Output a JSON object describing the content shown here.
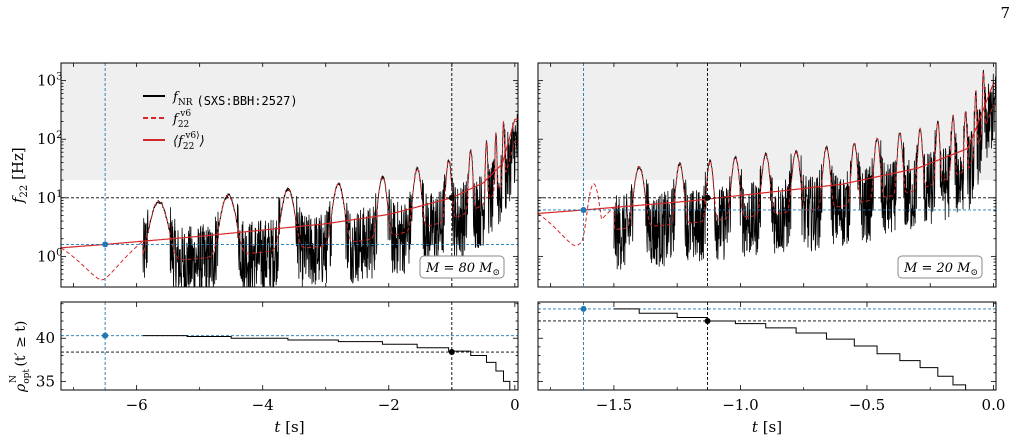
{
  "page_number": "7",
  "chart_data": [
    {
      "type": "line",
      "panel": "top-left",
      "ylabel": "f_22 [Hz]",
      "yscale": "log",
      "ylim": [
        0.3,
        2000
      ],
      "xlim": [
        -7.2,
        0.05
      ],
      "shaded_region_y": [
        20,
        2000
      ],
      "xticks": [
        -6,
        -4,
        -2,
        0
      ],
      "yticks": [
        1,
        10,
        100,
        1000
      ],
      "ytick_labels": [
        "10^0",
        "10^1",
        "10^2",
        "10^3"
      ],
      "legend": {
        "placement": "upper-left",
        "entries": [
          {
            "label": "f_NR",
            "code": "(SXS:BBH:2527)",
            "color": "#000000",
            "style": "solid"
          },
          {
            "label": "f_22^v6",
            "color": "#d62728",
            "style": "dashed"
          },
          {
            "label": "⟨f_22^v6⟩",
            "color": "#d62728",
            "style": "solid"
          }
        ]
      },
      "annotation": "M = 80 M_⊙",
      "ref_lines": {
        "h_black": 10,
        "v_black": -1.0,
        "h_blue": 1.6,
        "v_blue": -6.5
      },
      "marker_points": [
        {
          "x": -6.5,
          "y": 1.6,
          "color": "#1f77b4"
        },
        {
          "x": -1.0,
          "y": 10,
          "color": "#000000"
        }
      ],
      "nr_start": -5.9,
      "mean_curve": [
        [
          -7.2,
          1.4
        ],
        [
          -6.5,
          1.6
        ],
        [
          -5,
          2.2
        ],
        [
          -3,
          3.6
        ],
        [
          -2,
          5.2
        ],
        [
          -1,
          10
        ],
        [
          -0.5,
          18
        ],
        [
          -0.2,
          38
        ],
        [
          0,
          220
        ]
      ],
      "peaks": [
        -5.65,
        -4.55,
        -3.6,
        -2.8,
        -2.1,
        -1.55,
        -1.05,
        -0.7,
        -0.45,
        -0.3,
        -0.18
      ]
    },
    {
      "type": "line",
      "panel": "top-right",
      "yscale": "log",
      "ylim": [
        0.3,
        2000
      ],
      "xlim": [
        -1.8,
        0.01
      ],
      "shaded_region_y": [
        20,
        2000
      ],
      "annotation": "M = 20 M_⊙",
      "ref_lines": {
        "h_black": 10,
        "v_black": -1.13,
        "h_blue": 6.2,
        "v_blue": -1.62
      },
      "marker_points": [
        {
          "x": -1.62,
          "y": 6.2,
          "color": "#1f77b4"
        },
        {
          "x": -1.13,
          "y": 10,
          "color": "#000000"
        }
      ],
      "nr_start": -1.5,
      "mean_curve": [
        [
          -1.8,
          5.4
        ],
        [
          -1.62,
          6.2
        ],
        [
          -1.2,
          8.8
        ],
        [
          -1.0,
          11
        ],
        [
          -0.6,
          17
        ],
        [
          -0.3,
          32
        ],
        [
          -0.1,
          70
        ],
        [
          0,
          900
        ]
      ],
      "peaks": [
        -1.58,
        -1.4,
        -1.24,
        -1.12,
        -1.02,
        -0.9,
        -0.78,
        -0.66,
        -0.55,
        -0.46,
        -0.37,
        -0.29,
        -0.22,
        -0.16,
        -0.11,
        -0.07,
        -0.04
      ]
    },
    {
      "type": "line",
      "panel": "bottom-left",
      "xlabel": "t [s]",
      "ylabel": "ρ_opt^N (t′ ≥ t)",
      "ylim": [
        34,
        44.2
      ],
      "xlim": [
        -7.2,
        0.05
      ],
      "xticks": [
        -6,
        -4,
        -2,
        0
      ],
      "xtick_labels": [
        "−6",
        "−4",
        "−2",
        "0"
      ],
      "yticks": [
        35,
        40
      ],
      "ytick_labels": [
        "35",
        "40"
      ],
      "ref_lines": {
        "h_black": 38.4,
        "v_black": -1.0,
        "h_blue": 40.3,
        "v_blue": -6.5
      },
      "marker_points": [
        {
          "x": -6.5,
          "y": 40.3,
          "color": "#1f77b4"
        },
        {
          "x": -1.0,
          "y": 38.4,
          "color": "#000000"
        }
      ],
      "step_curve": [
        [
          -5.9,
          40.3
        ],
        [
          -5.2,
          40.2
        ],
        [
          -4.5,
          40.0
        ],
        [
          -3.6,
          39.8
        ],
        [
          -2.8,
          39.6
        ],
        [
          -2.1,
          39.3
        ],
        [
          -1.55,
          38.9
        ],
        [
          -1.05,
          38.5
        ],
        [
          -0.7,
          38.0
        ],
        [
          -0.45,
          37.2
        ],
        [
          -0.3,
          36.2
        ],
        [
          -0.18,
          35.0
        ],
        [
          -0.08,
          34.0
        ]
      ]
    },
    {
      "type": "line",
      "panel": "bottom-right",
      "xlabel": "t [s]",
      "ylim": [
        34,
        44.2
      ],
      "xlim": [
        -1.8,
        0.01
      ],
      "xticks": [
        -1.5,
        -1.0,
        -0.5,
        0.0
      ],
      "xtick_labels": [
        "−1.5",
        "−1.0",
        "−0.5",
        "0.0"
      ],
      "ref_lines": {
        "h_black": 42.0,
        "v_black": -1.13,
        "h_blue": 43.4,
        "v_blue": -1.62
      },
      "marker_points": [
        {
          "x": -1.62,
          "y": 43.4,
          "color": "#1f77b4"
        },
        {
          "x": -1.13,
          "y": 42.0,
          "color": "#000000"
        }
      ],
      "step_curve": [
        [
          -1.5,
          43.4
        ],
        [
          -1.4,
          42.9
        ],
        [
          -1.25,
          42.4
        ],
        [
          -1.13,
          42.0
        ],
        [
          -1.02,
          41.7
        ],
        [
          -0.9,
          41.2
        ],
        [
          -0.78,
          40.6
        ],
        [
          -0.66,
          39.9
        ],
        [
          -0.55,
          39.1
        ],
        [
          -0.46,
          38.2
        ],
        [
          -0.37,
          37.4
        ],
        [
          -0.29,
          36.6
        ],
        [
          -0.22,
          35.6
        ],
        [
          -0.16,
          34.6
        ],
        [
          -0.11,
          34.0
        ]
      ]
    }
  ]
}
